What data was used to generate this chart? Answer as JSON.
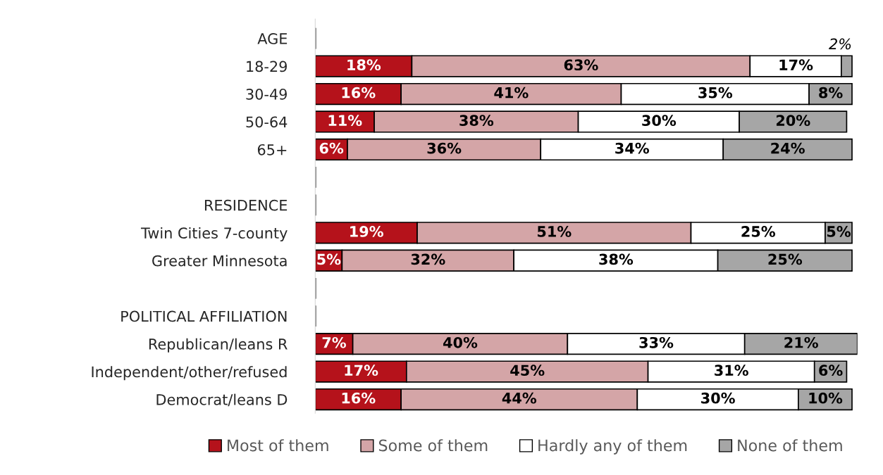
{
  "chart_data": {
    "type": "bar",
    "orientation": "horizontal",
    "stacked": true,
    "legend": "bottom",
    "grid": false,
    "tick_labels": "y",
    "categories": [
      "AGE",
      "18-29",
      "30-49",
      "50-64",
      "65+",
      null,
      "RESIDENCE",
      "Twin Cities 7-county",
      "Greater Minnesota",
      null,
      "POLITICAL AFFILIATION",
      "Republican/leans R",
      "Independent/other/refused",
      "Democrat/leans D"
    ],
    "series": [
      {
        "name": "Most of them",
        "color": "#b5121b",
        "values": [
          null,
          18,
          16,
          11,
          6,
          null,
          null,
          19,
          5,
          null,
          null,
          7,
          17,
          16
        ],
        "value_labels": [
          null,
          "18%",
          "16%",
          "11%",
          "6%",
          null,
          null,
          "19%",
          "5%",
          null,
          null,
          "7%",
          "17%",
          "16%"
        ]
      },
      {
        "name": "Some of them",
        "color": "#d4a5a7",
        "values": [
          null,
          63,
          41,
          38,
          36,
          null,
          null,
          51,
          32,
          null,
          null,
          40,
          45,
          44
        ],
        "value_labels": [
          null,
          "63%",
          "41%",
          "38%",
          "36%",
          null,
          null,
          "51%",
          "32%",
          null,
          null,
          "40%",
          "45%",
          "44%"
        ]
      },
      {
        "name": "Hardly any of them",
        "color": "#ffffff",
        "values": [
          null,
          17,
          35,
          30,
          34,
          null,
          null,
          25,
          38,
          null,
          null,
          33,
          31,
          30
        ],
        "value_labels": [
          null,
          "17%",
          "35%",
          "30%",
          "34%",
          null,
          null,
          "25%",
          "38%",
          null,
          null,
          "33%",
          "31%",
          "30%"
        ]
      },
      {
        "name": "None of them",
        "color": "#a6a6a6",
        "values": [
          null,
          2,
          8,
          20,
          24,
          null,
          null,
          5,
          25,
          null,
          null,
          21,
          6,
          10
        ],
        "value_labels": [
          null,
          "2%",
          "8%",
          "20%",
          "24%",
          null,
          null,
          "5%",
          "25%",
          null,
          null,
          "21%",
          "6%",
          "10%"
        ]
      }
    ]
  }
}
